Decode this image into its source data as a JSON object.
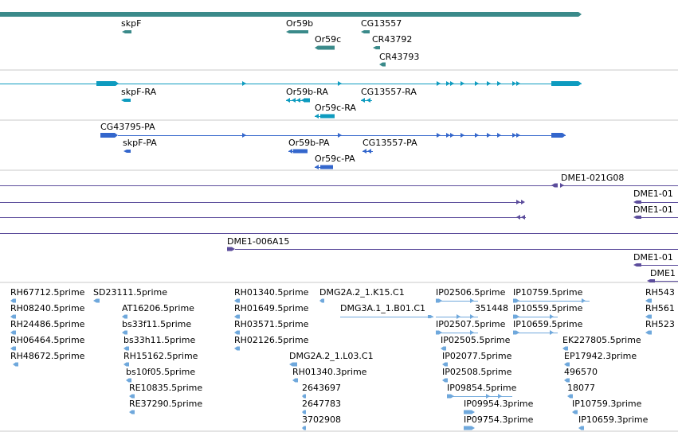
{
  "colors": {
    "gene": "#3a8a8a",
    "transcript": "#0e9bbf",
    "protein": "#3366cc",
    "clone": "#5c4d9c",
    "est": "#6fa8dc",
    "separator": "#c8c8c8"
  },
  "tracks": {
    "genes": {
      "labels": [
        "skpF",
        "Or59b",
        "Or59c",
        "CG13557",
        "CR43792",
        "CR43793"
      ]
    },
    "transcripts": {
      "labels": [
        "skpF-RA",
        "Or59b-RA",
        "Or59c-RA",
        "CG13557-RA"
      ]
    },
    "proteins": {
      "labels": [
        "CG43795-PA",
        "skpF-PA",
        "Or59b-PA",
        "CG13557-PA",
        "Or59c-PA"
      ]
    },
    "clones": {
      "labels": [
        "DME1-021G08",
        "DME1-01",
        "DME1-01",
        "DME1-006A15",
        "DME1-01",
        "DME1"
      ]
    },
    "ests": {
      "labels": [
        "RH67712.5prime",
        "SD23111.5prime",
        "RH08240.5prime",
        "RH24486.5prime",
        "RH06464.5prime",
        "RH48672.5prime",
        "AT16206.5prime",
        "bs33f11.5prime",
        "bs33h11.5prime",
        "RH15162.5prime",
        "bs10f05.5prime",
        "RE10835.5prime",
        "RE37290.5prime",
        "RH01340.5prime",
        "RH01649.5prime",
        "RH03571.5prime",
        "RH02126.5prime",
        "DMG2A.2_1.K15.C1",
        "DMG3A.1_1.B01.C1",
        "DMG2A.2_1.L03.C1",
        "RH01340.3prime",
        "2643697",
        "2647783",
        "3702908",
        "IP02506.5prime",
        "351448",
        "IP02507.5prime",
        "IP02505.5prime",
        "IP02077.5prime",
        "IP02508.5prime",
        "IP09854.5prime",
        "IP09954.3prime",
        "IP09754.3prime",
        "IP10759.5prime",
        "IP10559.5prime",
        "IP10659.5prime",
        "EK227805.5prime",
        "EP17942.3prime",
        "496570",
        "18077",
        "IP10759.3prime",
        "IP10659.3prime",
        "RH543",
        "RH561",
        "RH523"
      ]
    }
  }
}
